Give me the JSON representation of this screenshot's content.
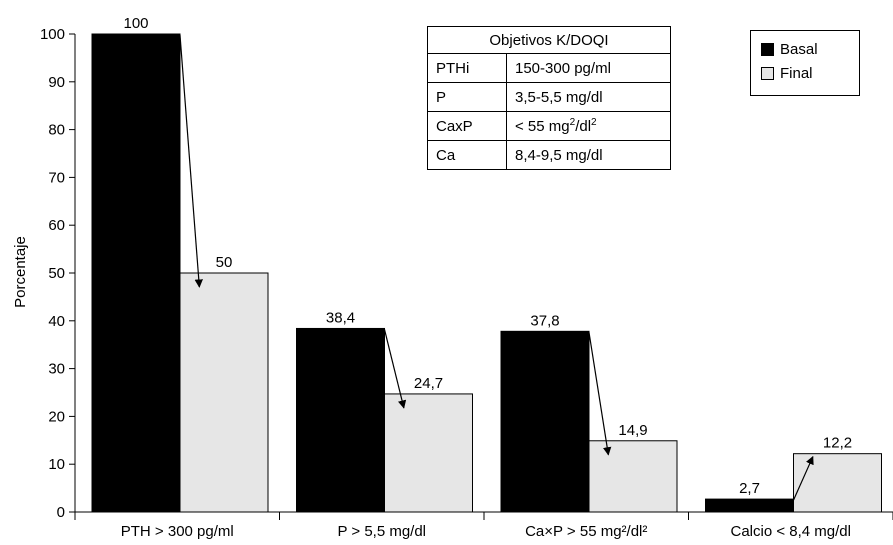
{
  "chart_data": {
    "type": "bar",
    "ylabel": "Porcentaje",
    "ylim": [
      0,
      100
    ],
    "yticks": [
      "0",
      "10",
      "20",
      "30",
      "40",
      "50",
      "60",
      "70",
      "80",
      "90",
      "100"
    ],
    "categories": [
      "PTH > 300 pg/ml",
      "P > 5,5 mg/dl",
      "Ca×P > 55 mg²/dl²",
      "Calcio < 8,4 mg/dl"
    ],
    "series": [
      {
        "name": "Basal",
        "values": [
          100,
          38.4,
          37.8,
          2.7
        ],
        "labels": [
          "100",
          "38,4",
          "37,8",
          "2,7"
        ],
        "color": "#000000"
      },
      {
        "name": "Final",
        "values": [
          50,
          24.7,
          14.9,
          12.2
        ],
        "labels": [
          "50",
          "24,7",
          "14,9",
          "12,2"
        ],
        "color": "#e6e6e6"
      }
    ],
    "legend_position": "top-right",
    "arrows": "from top of each Basal bar to its Final bar",
    "grid": false
  },
  "reference_table": {
    "title": "Objetivos K/DOQI",
    "rows": [
      {
        "param": "PTHi",
        "value": "150-300 pg/ml"
      },
      {
        "param": "P",
        "value": "3,5-5,5 mg/dl"
      },
      {
        "param": "CaxP",
        "value_prefix": "< 55 mg",
        "sup1": "2",
        "value_mid": "/dl",
        "sup2": "2"
      },
      {
        "param": "Ca",
        "value": "8,4-9,5 mg/dl"
      }
    ]
  },
  "legend": {
    "items": [
      {
        "label": "Basal",
        "color": "#000000"
      },
      {
        "label": "Final",
        "color": "#e6e6e6"
      }
    ]
  }
}
